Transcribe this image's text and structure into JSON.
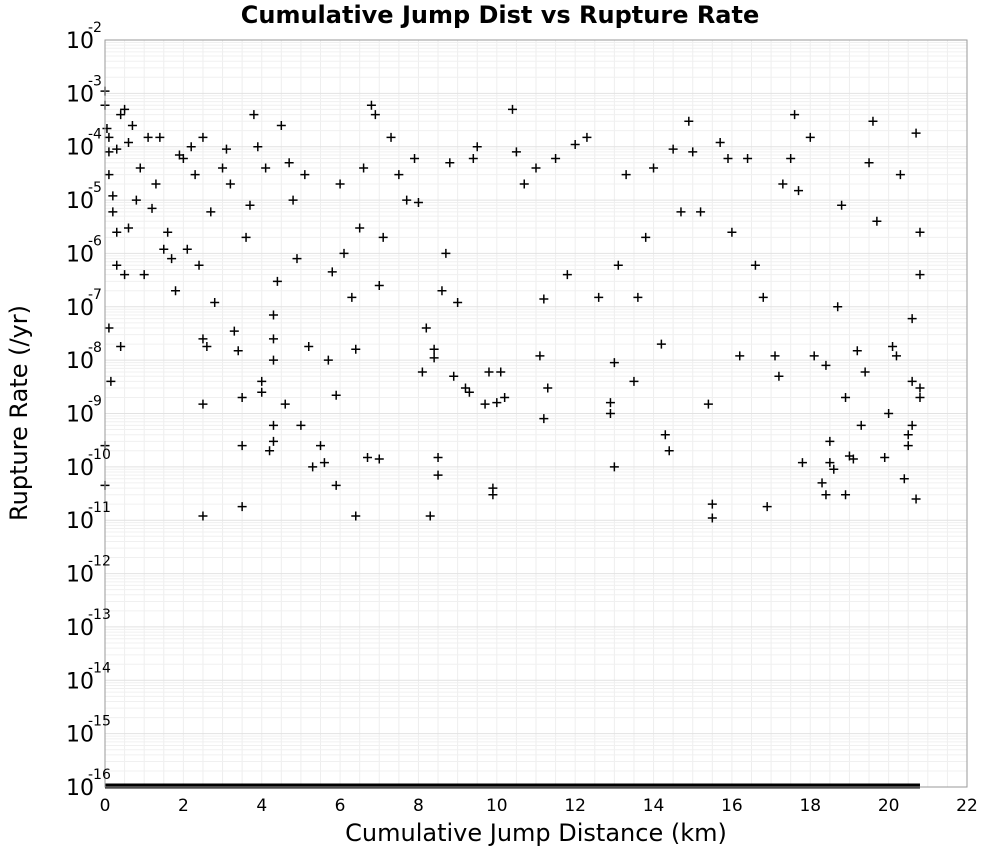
{
  "chart_data": {
    "type": "scatter",
    "title": "Cumulative Jump Dist vs Rupture Rate",
    "xlabel": "Cumulative Jump Distance (km)",
    "ylabel": "Rupture Rate (/yr)",
    "xlim": [
      0,
      22
    ],
    "ylim": [
      1e-16,
      0.01
    ],
    "y_scale": "log",
    "x_ticks": [
      "0",
      "2",
      "4",
      "6",
      "8",
      "10",
      "12",
      "14",
      "16",
      "18",
      "20",
      "22"
    ],
    "y_ticks": [
      {
        "base": "10",
        "exp": "-2"
      },
      {
        "base": "10",
        "exp": "-3"
      },
      {
        "base": "10",
        "exp": "-4"
      },
      {
        "base": "10",
        "exp": "-5"
      },
      {
        "base": "10",
        "exp": "-6"
      },
      {
        "base": "10",
        "exp": "-7"
      },
      {
        "base": "10",
        "exp": "-8"
      },
      {
        "base": "10",
        "exp": "-9"
      },
      {
        "base": "10",
        "exp": "-10"
      },
      {
        "base": "10",
        "exp": "-11"
      },
      {
        "base": "10",
        "exp": "-12"
      },
      {
        "base": "10",
        "exp": "-13"
      },
      {
        "base": "10",
        "exp": "-14"
      },
      {
        "base": "10",
        "exp": "-15"
      },
      {
        "base": "10",
        "exp": "-16"
      }
    ],
    "grid": true,
    "marker": "plus",
    "marker_color": "#000000",
    "floor_band": {
      "y": 1e-16,
      "x_range": [
        0,
        20.8
      ],
      "note": "many points at the lower plot limit"
    },
    "points": [
      [
        0.0,
        0.0011
      ],
      [
        0.0,
        0.0006
      ],
      [
        0.0,
        2.5e-10
      ],
      [
        0.0,
        4.5e-11
      ],
      [
        0.05,
        0.00022
      ],
      [
        0.1,
        0.00015
      ],
      [
        0.1,
        4e-08
      ],
      [
        0.15,
        4e-09
      ],
      [
        0.1,
        8e-05
      ],
      [
        0.1,
        3e-05
      ],
      [
        0.2,
        1.2e-05
      ],
      [
        0.2,
        6e-06
      ],
      [
        0.3,
        2.5e-06
      ],
      [
        0.3,
        9e-05
      ],
      [
        0.4,
        0.0004
      ],
      [
        0.5,
        0.0005
      ],
      [
        0.4,
        1.8e-08
      ],
      [
        0.3,
        6e-07
      ],
      [
        0.5,
        4e-07
      ],
      [
        0.6,
        0.00012
      ],
      [
        0.7,
        0.00025
      ],
      [
        0.6,
        3e-06
      ],
      [
        0.8,
        1e-05
      ],
      [
        0.9,
        4e-05
      ],
      [
        1.0,
        4e-07
      ],
      [
        1.1,
        0.00015
      ],
      [
        1.2,
        7e-06
      ],
      [
        1.3,
        2e-05
      ],
      [
        1.4,
        0.00015
      ],
      [
        1.5,
        1.2e-06
      ],
      [
        1.6,
        2.5e-06
      ],
      [
        1.7,
        8e-07
      ],
      [
        1.8,
        2e-07
      ],
      [
        1.9,
        7e-05
      ],
      [
        2.0,
        6e-05
      ],
      [
        2.1,
        1.2e-06
      ],
      [
        2.2,
        0.0001
      ],
      [
        2.3,
        3e-05
      ],
      [
        2.4,
        6e-07
      ],
      [
        2.5,
        0.00015
      ],
      [
        2.5,
        2.5e-08
      ],
      [
        2.5,
        1.5e-09
      ],
      [
        2.6,
        1.8e-08
      ],
      [
        2.7,
        6e-06
      ],
      [
        2.8,
        1.2e-07
      ],
      [
        2.5,
        1.2e-11
      ],
      [
        3.0,
        4e-05
      ],
      [
        3.1,
        9e-05
      ],
      [
        3.2,
        2e-05
      ],
      [
        3.3,
        3.5e-08
      ],
      [
        3.4,
        1.5e-08
      ],
      [
        3.5,
        2.5e-10
      ],
      [
        3.5,
        1.8e-11
      ],
      [
        3.5,
        2e-09
      ],
      [
        3.6,
        2e-06
      ],
      [
        3.7,
        8e-06
      ],
      [
        3.8,
        0.0004
      ],
      [
        3.9,
        0.0001
      ],
      [
        4.0,
        2.5e-09
      ],
      [
        4.0,
        4e-09
      ],
      [
        4.1,
        4e-05
      ],
      [
        4.2,
        2e-10
      ],
      [
        4.3,
        3e-10
      ],
      [
        4.3,
        6e-10
      ],
      [
        4.3,
        2.5e-08
      ],
      [
        4.3,
        1e-08
      ],
      [
        4.3,
        7e-08
      ],
      [
        4.4,
        3e-07
      ],
      [
        4.5,
        0.00025
      ],
      [
        4.6,
        1.5e-09
      ],
      [
        4.7,
        5e-05
      ],
      [
        4.8,
        1e-05
      ],
      [
        4.9,
        8e-07
      ],
      [
        5.0,
        6e-10
      ],
      [
        5.1,
        3e-05
      ],
      [
        5.2,
        1.8e-08
      ],
      [
        5.3,
        1e-10
      ],
      [
        5.5,
        2.5e-10
      ],
      [
        5.6,
        1.2e-10
      ],
      [
        5.7,
        1e-08
      ],
      [
        5.8,
        4.5e-07
      ],
      [
        5.9,
        4.5e-11
      ],
      [
        5.9,
        2.2e-09
      ],
      [
        6.0,
        2e-05
      ],
      [
        6.1,
        1e-06
      ],
      [
        6.3,
        1.5e-07
      ],
      [
        6.4,
        1.2e-11
      ],
      [
        6.4,
        1.6e-08
      ],
      [
        6.5,
        3e-06
      ],
      [
        6.6,
        4e-05
      ],
      [
        6.7,
        1.5e-10
      ],
      [
        6.8,
        0.0006
      ],
      [
        6.9,
        0.0004
      ],
      [
        7.0,
        1.4e-10
      ],
      [
        7.0,
        2.5e-07
      ],
      [
        7.1,
        2e-06
      ],
      [
        7.3,
        0.00015
      ],
      [
        7.5,
        3e-05
      ],
      [
        7.7,
        1e-05
      ],
      [
        7.9,
        6e-05
      ],
      [
        8.0,
        9e-06
      ],
      [
        8.1,
        6e-09
      ],
      [
        8.2,
        4e-08
      ],
      [
        8.3,
        1.2e-11
      ],
      [
        8.4,
        1.6e-08
      ],
      [
        8.4,
        1.1e-08
      ],
      [
        8.5,
        1.5e-10
      ],
      [
        8.5,
        7e-11
      ],
      [
        8.6,
        2e-07
      ],
      [
        8.7,
        1e-06
      ],
      [
        8.8,
        5e-05
      ],
      [
        8.9,
        5e-09
      ],
      [
        9.0,
        1.2e-07
      ],
      [
        9.2,
        3e-09
      ],
      [
        9.3,
        2.5e-09
      ],
      [
        9.4,
        6e-05
      ],
      [
        9.5,
        0.0001
      ],
      [
        9.7,
        1.5e-09
      ],
      [
        9.8,
        6e-09
      ],
      [
        9.9,
        4e-11
      ],
      [
        9.9,
        3e-11
      ],
      [
        10.0,
        1.6e-09
      ],
      [
        10.1,
        6e-09
      ],
      [
        10.2,
        2e-09
      ],
      [
        10.4,
        0.0005
      ],
      [
        10.5,
        8e-05
      ],
      [
        10.7,
        2e-05
      ],
      [
        11.0,
        4e-05
      ],
      [
        11.1,
        1.2e-08
      ],
      [
        11.2,
        1.4e-07
      ],
      [
        11.2,
        8e-10
      ],
      [
        11.3,
        3e-09
      ],
      [
        11.5,
        6e-05
      ],
      [
        11.8,
        4e-07
      ],
      [
        12.0,
        0.00011
      ],
      [
        12.3,
        0.00015
      ],
      [
        12.6,
        1.5e-07
      ],
      [
        12.9,
        1.6e-09
      ],
      [
        12.9,
        1e-09
      ],
      [
        13.0,
        1e-10
      ],
      [
        13.0,
        9e-09
      ],
      [
        13.1,
        6e-07
      ],
      [
        13.3,
        3e-05
      ],
      [
        13.5,
        4e-09
      ],
      [
        13.6,
        1.5e-07
      ],
      [
        13.8,
        2e-06
      ],
      [
        14.0,
        4e-05
      ],
      [
        14.2,
        2e-08
      ],
      [
        14.3,
        4e-10
      ],
      [
        14.4,
        2e-10
      ],
      [
        14.5,
        9e-05
      ],
      [
        14.7,
        6e-06
      ],
      [
        14.9,
        0.0003
      ],
      [
        15.0,
        8e-05
      ],
      [
        15.2,
        6e-06
      ],
      [
        15.4,
        1.5e-09
      ],
      [
        15.5,
        2e-11
      ],
      [
        15.5,
        1.1e-11
      ],
      [
        15.7,
        0.00012
      ],
      [
        15.9,
        6e-05
      ],
      [
        16.0,
        2.5e-06
      ],
      [
        16.2,
        1.2e-08
      ],
      [
        16.4,
        6e-05
      ],
      [
        16.6,
        6e-07
      ],
      [
        16.8,
        1.5e-07
      ],
      [
        16.9,
        1.8e-11
      ],
      [
        17.1,
        1.2e-08
      ],
      [
        17.2,
        5e-09
      ],
      [
        17.3,
        2e-05
      ],
      [
        17.5,
        6e-05
      ],
      [
        17.6,
        0.0004
      ],
      [
        17.7,
        1.5e-05
      ],
      [
        17.8,
        1.2e-10
      ],
      [
        18.0,
        0.00015
      ],
      [
        18.1,
        1.2e-08
      ],
      [
        18.3,
        5e-11
      ],
      [
        18.4,
        8e-09
      ],
      [
        18.4,
        3e-11
      ],
      [
        18.5,
        3e-10
      ],
      [
        18.5,
        1.2e-10
      ],
      [
        18.6,
        9e-11
      ],
      [
        18.7,
        1e-07
      ],
      [
        18.8,
        8e-06
      ],
      [
        18.9,
        3e-11
      ],
      [
        18.9,
        2e-09
      ],
      [
        19.0,
        1.6e-10
      ],
      [
        19.1,
        1.4e-10
      ],
      [
        19.2,
        1.5e-08
      ],
      [
        19.3,
        6e-10
      ],
      [
        19.4,
        6e-09
      ],
      [
        19.5,
        5e-05
      ],
      [
        19.6,
        0.0003
      ],
      [
        19.7,
        4e-06
      ],
      [
        19.9,
        1.5e-10
      ],
      [
        20.0,
        1e-09
      ],
      [
        20.1,
        1.8e-08
      ],
      [
        20.2,
        1.2e-08
      ],
      [
        20.3,
        3e-05
      ],
      [
        20.4,
        6e-11
      ],
      [
        20.5,
        2.5e-10
      ],
      [
        20.5,
        4e-10
      ],
      [
        20.6,
        6e-10
      ],
      [
        20.6,
        4e-09
      ],
      [
        20.6,
        6e-08
      ],
      [
        20.7,
        2.5e-11
      ],
      [
        20.7,
        0.00018
      ],
      [
        20.8,
        2e-09
      ],
      [
        20.8,
        3e-09
      ],
      [
        20.8,
        4e-07
      ],
      [
        20.8,
        2.5e-06
      ]
    ]
  }
}
